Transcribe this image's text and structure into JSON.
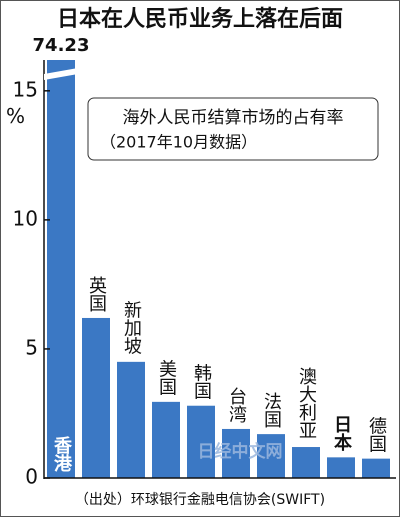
{
  "chart_data": {
    "type": "bar",
    "title": "日本在人民币业务上落在后面",
    "annotation": [
      "海外人民币结算市场的占有率",
      "（2017年10月数据）"
    ],
    "source": "（出处）环球银行金融电信协会(SWIFT)",
    "watermark": "日经中文网",
    "y_label": "%",
    "categories": [
      "香港",
      "英国",
      "新加坡",
      "美国",
      "韩国",
      "台湾",
      "法国",
      "澳大利亚",
      "日本",
      "德国"
    ],
    "values": [
      74.23,
      6.2,
      4.5,
      2.95,
      2.8,
      1.9,
      1.7,
      1.2,
      0.8,
      0.75
    ],
    "value_labels": [
      "74.23",
      null,
      null,
      null,
      null,
      null,
      null,
      null,
      null,
      null
    ],
    "color": "#3b78c4",
    "ylim": [
      0,
      16
    ],
    "yticks": [
      0,
      5,
      10,
      15
    ],
    "grid": false
  }
}
